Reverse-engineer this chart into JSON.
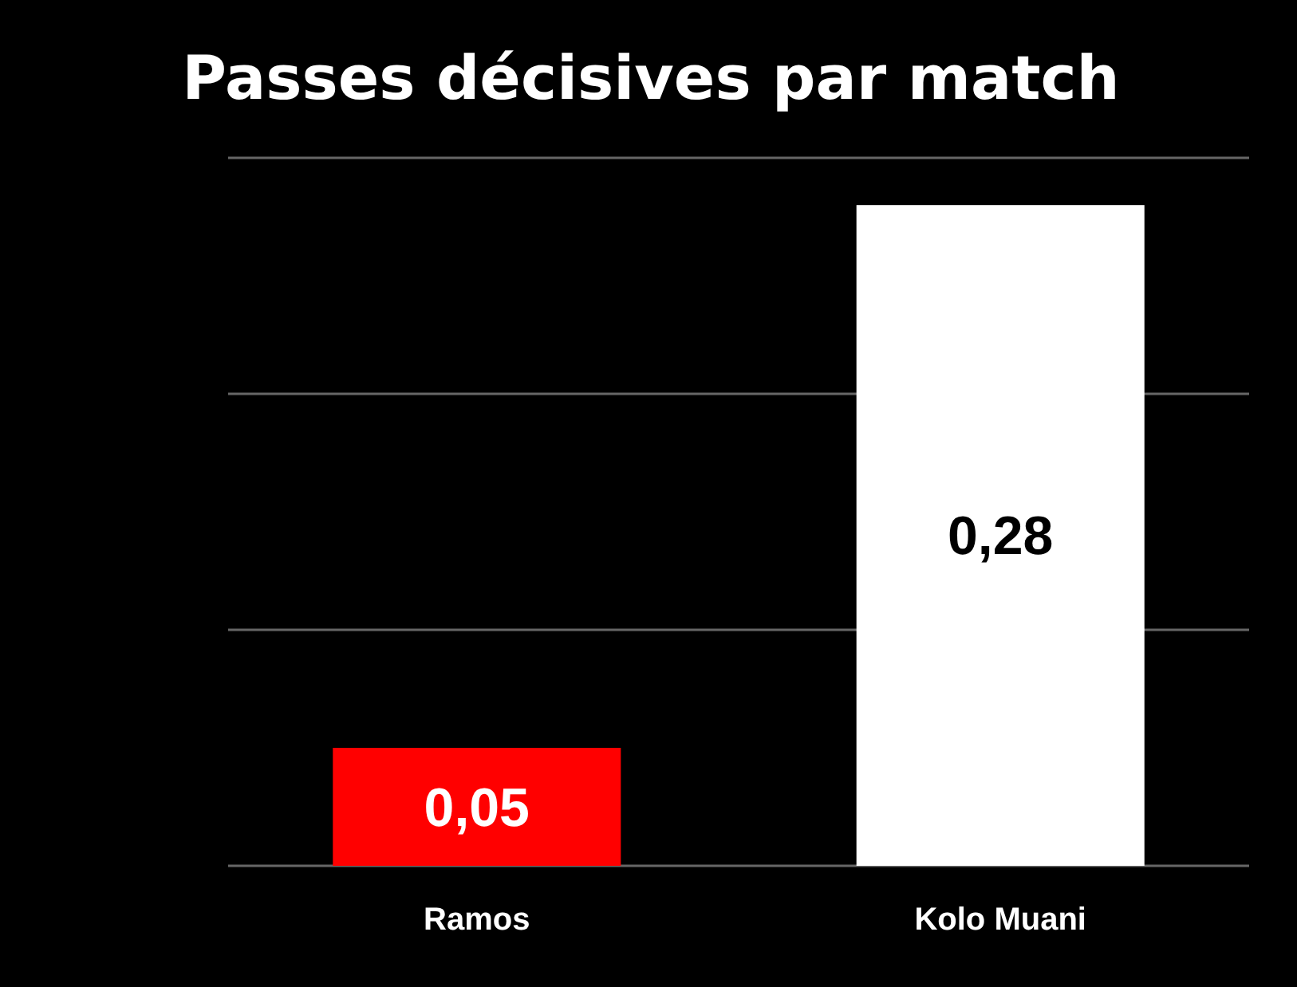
{
  "chart_data": {
    "type": "bar",
    "title": "Passes décisives par match",
    "categories": [
      "Ramos",
      "Kolo Muani"
    ],
    "values": [
      0.05,
      0.28
    ],
    "colors": [
      "#ff0000",
      "#ffffff"
    ],
    "value_labels": [
      "0,05",
      "0,28"
    ],
    "ylim": [
      0,
      0.3
    ],
    "yticks": [
      {
        "value": 0,
        "label": null
      },
      {
        "value": 0.1,
        "label": null
      },
      {
        "value": 0.2,
        "label": null
      },
      {
        "value": 0.3,
        "label": null
      }
    ],
    "tick_labels": "x",
    "grid": "y"
  }
}
